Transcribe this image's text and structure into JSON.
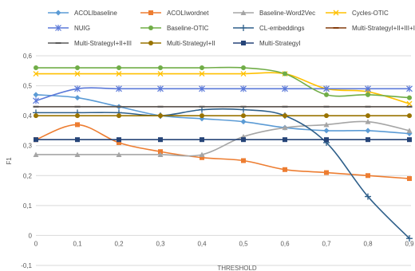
{
  "chart_data": {
    "type": "line",
    "xlabel": "THRESHOLD",
    "ylabel": "F1",
    "x": [
      0,
      0.1,
      0.2,
      0.3,
      0.4,
      0.5,
      0.6,
      0.7,
      0.8,
      0.9
    ],
    "x_tick_labels": [
      "0",
      "0,1",
      "0,2",
      "0,3",
      "0,4",
      "0,5",
      "0,6",
      "0,7",
      "0,8",
      "0,9"
    ],
    "ylim": [
      -0.1,
      0.6
    ],
    "y_ticks": [
      -0.1,
      0,
      0.1,
      0.2,
      0.3,
      0.4,
      0.5,
      0.6
    ],
    "y_tick_labels": [
      "-0,1",
      "0",
      "0,1",
      "0,2",
      "0,3",
      "0,4",
      "0,5",
      "0,6"
    ],
    "grid": true,
    "legend_position": "top",
    "series": [
      {
        "name": "ACOLIbaseline",
        "color": "#5B9BD5",
        "marker": "diamond",
        "values": [
          0.47,
          0.46,
          0.43,
          0.4,
          0.39,
          0.38,
          0.36,
          0.35,
          0.35,
          0.34
        ]
      },
      {
        "name": "ACOLIwordnet",
        "color": "#ED7D31",
        "marker": "square",
        "values": [
          0.32,
          0.37,
          0.31,
          0.28,
          0.26,
          0.25,
          0.22,
          0.21,
          0.2,
          0.19
        ]
      },
      {
        "name": "Baseline-Word2Vec",
        "color": "#A5A5A5",
        "marker": "triangle",
        "values": [
          0.27,
          0.27,
          0.27,
          0.27,
          0.27,
          0.33,
          0.36,
          0.37,
          0.38,
          0.35
        ]
      },
      {
        "name": "Cycles-OTIC",
        "color": "#FFC000",
        "marker": "x",
        "values": [
          0.54,
          0.54,
          0.54,
          0.54,
          0.54,
          0.54,
          0.54,
          0.49,
          0.48,
          0.44
        ]
      },
      {
        "name": "NUIG",
        "color": "#5B79D9",
        "marker": "star",
        "values": [
          0.45,
          0.49,
          0.49,
          0.49,
          0.49,
          0.49,
          0.49,
          0.49,
          0.49,
          0.49
        ]
      },
      {
        "name": "Baseline-OTIC",
        "color": "#70AD47",
        "marker": "circle",
        "values": [
          0.56,
          0.56,
          0.56,
          0.56,
          0.56,
          0.56,
          0.54,
          0.47,
          0.47,
          0.46
        ]
      },
      {
        "name": "CL-embeddings",
        "color": "#2E5F8A",
        "marker": "plus",
        "values": [
          0.41,
          0.41,
          0.41,
          0.4,
          0.42,
          0.42,
          0.4,
          0.31,
          0.13,
          -0.01
        ]
      },
      {
        "name": "Multi-StrategyI+II+III+IV",
        "color": "#843C0C",
        "marker": "dash",
        "values": [
          0.43,
          0.43,
          0.43,
          0.43,
          0.43,
          0.43,
          0.43,
          0.43,
          0.43,
          0.43
        ]
      },
      {
        "name": "Multi-StrategyI+II+III",
        "color": "#595959",
        "marker": "dash",
        "values": [
          0.43,
          0.43,
          0.43,
          0.43,
          0.43,
          0.43,
          0.43,
          0.43,
          0.43,
          0.43
        ]
      },
      {
        "name": "Multi-StrategyI+II",
        "color": "#997300",
        "marker": "circle",
        "values": [
          0.4,
          0.4,
          0.4,
          0.4,
          0.4,
          0.4,
          0.4,
          0.4,
          0.4,
          0.4
        ]
      },
      {
        "name": "Multi-StrategyI",
        "color": "#264478",
        "marker": "square",
        "values": [
          0.32,
          0.32,
          0.32,
          0.32,
          0.32,
          0.32,
          0.32,
          0.32,
          0.32,
          0.32
        ]
      }
    ]
  }
}
